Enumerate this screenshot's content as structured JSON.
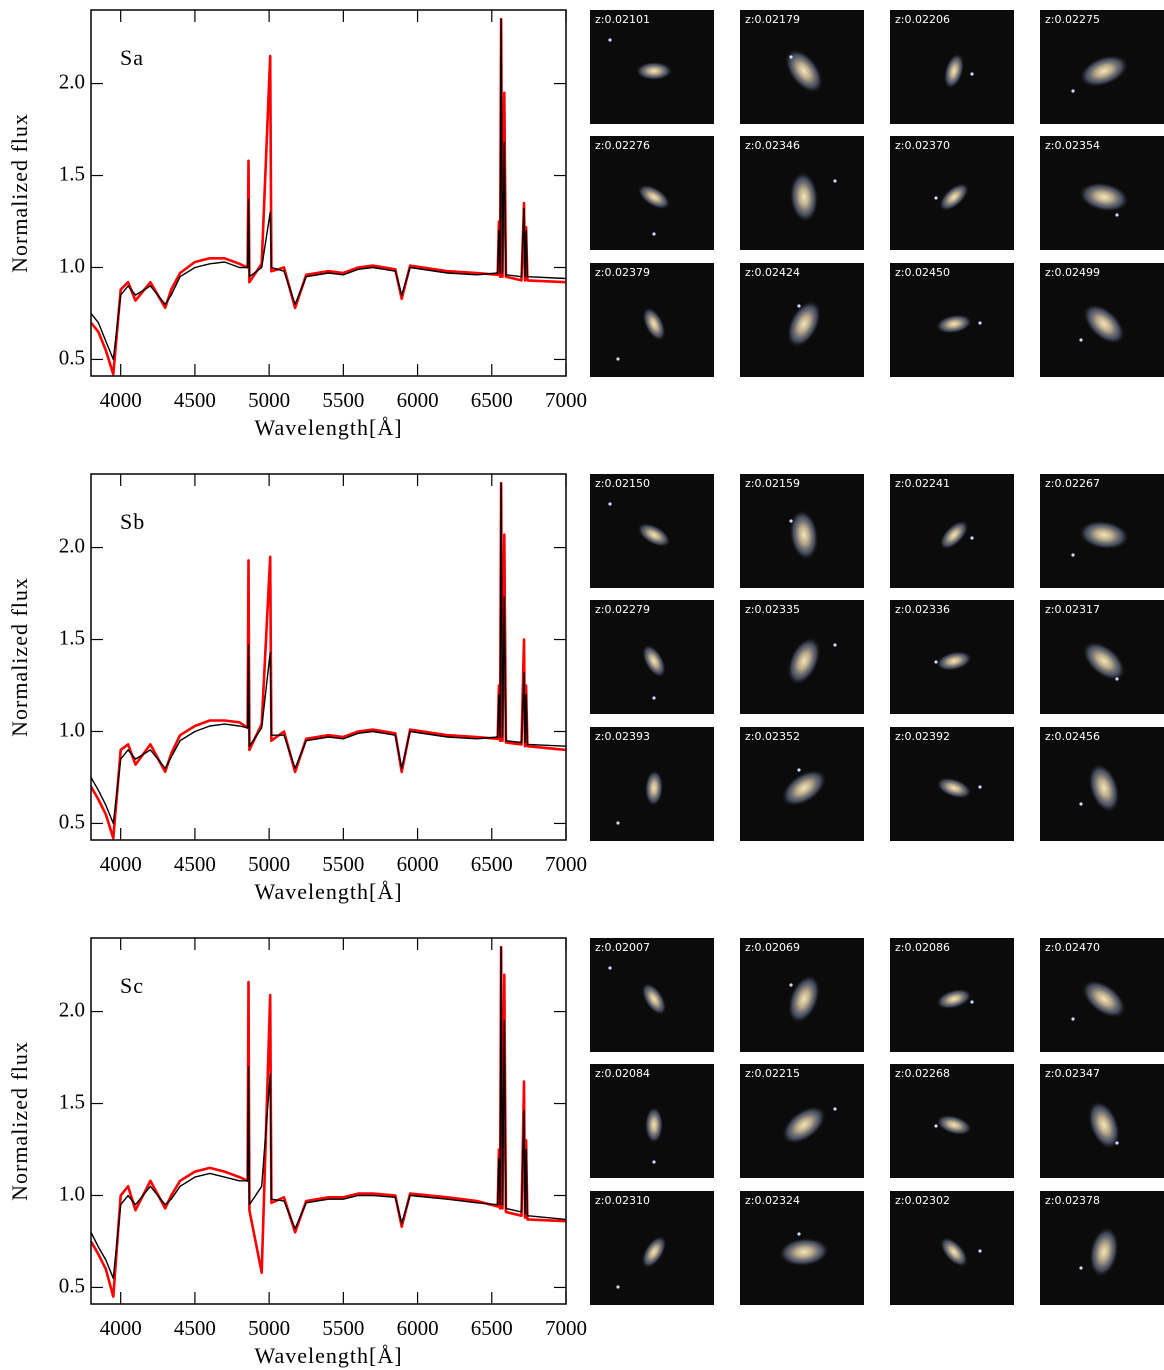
{
  "chart_data": [
    {
      "type": "line",
      "label": "Sa",
      "xlabel": "Wavelength[Å]",
      "ylabel": "Normalized flux",
      "x": [
        3800,
        3850,
        3900,
        3950,
        4000,
        4050,
        4100,
        4200,
        4300,
        4340,
        4400,
        4500,
        4600,
        4700,
        4800,
        4855,
        4861,
        4867,
        4950,
        5007,
        5015,
        5100,
        5175,
        5250,
        5400,
        5500,
        5600,
        5700,
        5850,
        5893,
        5950,
        6200,
        6400,
        6540,
        6548,
        6556,
        6563,
        6572,
        6584,
        6595,
        6700,
        6717,
        6724,
        6731,
        6740,
        7000
      ],
      "series": [
        {
          "color": "#ff0000",
          "values": [
            0.7,
            0.65,
            0.55,
            0.42,
            0.88,
            0.92,
            0.82,
            0.92,
            0.78,
            0.88,
            0.97,
            1.03,
            1.05,
            1.05,
            1.02,
            1.0,
            1.58,
            0.92,
            1.02,
            2.15,
            0.98,
            1.0,
            0.78,
            0.96,
            0.98,
            0.97,
            1.0,
            1.01,
            0.99,
            0.83,
            1.01,
            0.98,
            0.97,
            0.96,
            1.25,
            0.95,
            2.35,
            0.95,
            1.95,
            0.95,
            0.93,
            1.35,
            0.93,
            1.22,
            0.93,
            0.92
          ]
        },
        {
          "color": "#000000",
          "values": [
            0.75,
            0.7,
            0.6,
            0.5,
            0.85,
            0.9,
            0.85,
            0.9,
            0.8,
            0.85,
            0.95,
            1.0,
            1.02,
            1.03,
            1.0,
            1.0,
            1.37,
            0.95,
            1.0,
            1.3,
            1.0,
            0.98,
            0.8,
            0.95,
            0.97,
            0.96,
            0.99,
            1.0,
            0.98,
            0.85,
            1.0,
            0.97,
            0.96,
            0.97,
            1.2,
            0.97,
            2.35,
            0.97,
            1.68,
            0.96,
            0.95,
            1.32,
            0.95,
            1.2,
            0.95,
            0.94
          ]
        }
      ],
      "xlim": [
        3800,
        7000
      ],
      "ylim": [
        0.41,
        2.4
      ],
      "xticks": [
        4000,
        4500,
        5000,
        5500,
        6000,
        6500,
        7000
      ],
      "yticks": [
        0.5,
        {
          "value": 1,
          "label": "1.0"
        },
        1.5,
        {
          "value": 2,
          "label": "2.0"
        }
      ],
      "thumbnails": [
        "z:0.02101",
        "z:0.02179",
        "z:0.02206",
        "z:0.02275",
        "z:0.02276",
        "z:0.02346",
        "z:0.02370",
        "z:0.02354",
        "z:0.02379",
        "z:0.02424",
        "z:0.02450",
        "z:0.02499"
      ]
    },
    {
      "type": "line",
      "label": "Sb",
      "xlabel": "Wavelength[Å]",
      "ylabel": "Normalized flux",
      "x": [
        3800,
        3850,
        3900,
        3950,
        4000,
        4050,
        4100,
        4200,
        4300,
        4340,
        4400,
        4500,
        4600,
        4700,
        4800,
        4855,
        4861,
        4867,
        4950,
        5007,
        5015,
        5100,
        5175,
        5250,
        5400,
        5500,
        5600,
        5700,
        5850,
        5893,
        5950,
        6200,
        6400,
        6540,
        6548,
        6556,
        6563,
        6572,
        6584,
        6595,
        6700,
        6717,
        6724,
        6731,
        6740,
        7000
      ],
      "series": [
        {
          "color": "#ff0000",
          "values": [
            0.7,
            0.63,
            0.55,
            0.42,
            0.9,
            0.93,
            0.82,
            0.93,
            0.78,
            0.88,
            0.98,
            1.03,
            1.06,
            1.06,
            1.05,
            1.02,
            1.93,
            0.9,
            1.04,
            1.95,
            0.95,
            1.0,
            0.78,
            0.96,
            0.98,
            0.97,
            1.0,
            1.01,
            0.99,
            0.78,
            1.01,
            0.98,
            0.97,
            0.96,
            1.25,
            0.95,
            2.35,
            0.95,
            2.07,
            0.94,
            0.93,
            1.5,
            0.92,
            1.25,
            0.92,
            0.9
          ]
        },
        {
          "color": "#000000",
          "values": [
            0.75,
            0.68,
            0.6,
            0.5,
            0.85,
            0.9,
            0.85,
            0.9,
            0.8,
            0.86,
            0.95,
            1.0,
            1.03,
            1.04,
            1.03,
            1.02,
            1.47,
            0.92,
            1.02,
            1.43,
            0.98,
            0.98,
            0.8,
            0.95,
            0.97,
            0.96,
            0.99,
            1.0,
            0.98,
            0.8,
            1.0,
            0.97,
            0.96,
            0.97,
            1.2,
            0.97,
            2.35,
            0.97,
            1.73,
            0.95,
            0.94,
            1.32,
            0.94,
            1.2,
            0.93,
            0.92
          ]
        }
      ],
      "xlim": [
        3800,
        7000
      ],
      "ylim": [
        0.41,
        2.4
      ],
      "xticks": [
        4000,
        4500,
        5000,
        5500,
        6000,
        6500,
        7000
      ],
      "yticks": [
        0.5,
        {
          "value": 1,
          "label": "1.0"
        },
        1.5,
        {
          "value": 2,
          "label": "2.0"
        }
      ],
      "thumbnails": [
        "z:0.02150",
        "z:0.02159",
        "z:0.02241",
        "z:0.02267",
        "z:0.02279",
        "z:0.02335",
        "z:0.02336",
        "z:0.02317",
        "z:0.02393",
        "z:0.02352",
        "z:0.02392",
        "z:0.02456"
      ]
    },
    {
      "type": "line",
      "label": "Sc",
      "xlabel": "Wavelength[Å]",
      "ylabel": "Normalized flux",
      "x": [
        3800,
        3850,
        3900,
        3950,
        4000,
        4050,
        4100,
        4200,
        4300,
        4340,
        4400,
        4500,
        4600,
        4700,
        4800,
        4855,
        4861,
        4867,
        4950,
        5007,
        5015,
        5100,
        5175,
        5250,
        5400,
        5500,
        5600,
        5700,
        5850,
        5893,
        5950,
        6200,
        6400,
        6540,
        6548,
        6556,
        6563,
        6572,
        6584,
        6595,
        6700,
        6717,
        6724,
        6731,
        6740,
        7000
      ],
      "series": [
        {
          "color": "#ff0000",
          "values": [
            0.75,
            0.68,
            0.6,
            0.45,
            1.0,
            1.05,
            0.92,
            1.08,
            0.93,
            1.0,
            1.08,
            1.13,
            1.15,
            1.13,
            1.1,
            1.08,
            2.16,
            0.92,
            0.58,
            2.09,
            0.96,
            0.99,
            0.8,
            0.97,
            0.99,
            0.99,
            1.01,
            1.01,
            1.0,
            0.83,
            1.01,
            0.99,
            0.97,
            0.94,
            1.25,
            0.93,
            2.35,
            0.93,
            2.2,
            0.91,
            0.89,
            1.62,
            0.88,
            1.3,
            0.87,
            0.86
          ]
        },
        {
          "color": "#000000",
          "values": [
            0.8,
            0.72,
            0.65,
            0.55,
            0.95,
            1.0,
            0.95,
            1.05,
            0.95,
            0.98,
            1.05,
            1.1,
            1.12,
            1.1,
            1.08,
            1.08,
            1.7,
            0.95,
            1.05,
            1.66,
            0.98,
            0.97,
            0.82,
            0.96,
            0.98,
            0.98,
            1.0,
            1.0,
            0.99,
            0.85,
            1.0,
            0.98,
            0.96,
            0.95,
            1.2,
            0.95,
            2.35,
            0.95,
            1.95,
            0.93,
            0.91,
            1.46,
            0.9,
            1.25,
            0.89,
            0.87
          ]
        }
      ],
      "xlim": [
        3800,
        7000
      ],
      "ylim": [
        0.41,
        2.4
      ],
      "xticks": [
        4000,
        4500,
        5000,
        5500,
        6000,
        6500,
        7000
      ],
      "yticks": [
        0.5,
        {
          "value": 1,
          "label": "1.0"
        },
        1.5,
        {
          "value": 2,
          "label": "2.0"
        }
      ],
      "thumbnails": [
        "z:0.02007",
        "z:0.02069",
        "z:0.02086",
        "z:0.02470",
        "z:0.02084",
        "z:0.02215",
        "z:0.02268",
        "z:0.02347",
        "z:0.02310",
        "z:0.02324",
        "z:0.02302",
        "z:0.02378"
      ]
    }
  ]
}
